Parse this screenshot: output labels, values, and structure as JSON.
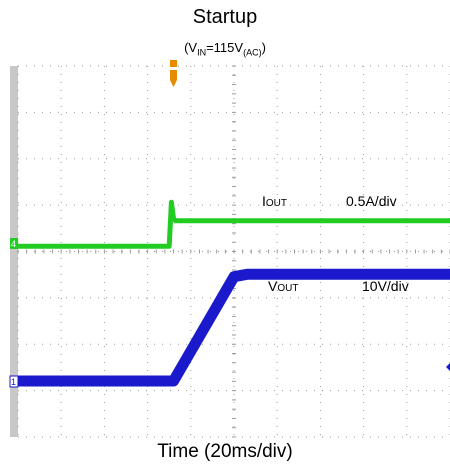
{
  "chart_data": {
    "type": "line",
    "title": "Startup",
    "subtitle": {
      "prefix": "(V",
      "sub1": "IN",
      "middle": "=115V",
      "sub2": "(AC)",
      "suffix": ")"
    },
    "xlabel": "Time (20ms/div)",
    "grid": true,
    "divisions": {
      "x": 10,
      "y": 8
    },
    "series": [
      {
        "name_main": "I",
        "name_sub": "OUT",
        "scale": "0.5A/div",
        "color": "#22cc22",
        "units": "div",
        "x": [
          0,
          3.5,
          3.55,
          3.6,
          3.65,
          10
        ],
        "y": [
          -0.05,
          -0.05,
          0.9,
          0.55,
          0.5,
          0.5
        ]
      },
      {
        "name_main": "V",
        "name_sub": "OUT",
        "scale": "10V/div",
        "color": "#1a1acc",
        "units": "div",
        "x": [
          0,
          3.6,
          5.0,
          5.3,
          10
        ],
        "y": [
          0,
          0,
          2.25,
          2.3,
          2.3
        ]
      }
    ],
    "markers": {
      "trigger_color": "#e68a00",
      "ch4_label": "4",
      "ch1_label": "1"
    }
  }
}
